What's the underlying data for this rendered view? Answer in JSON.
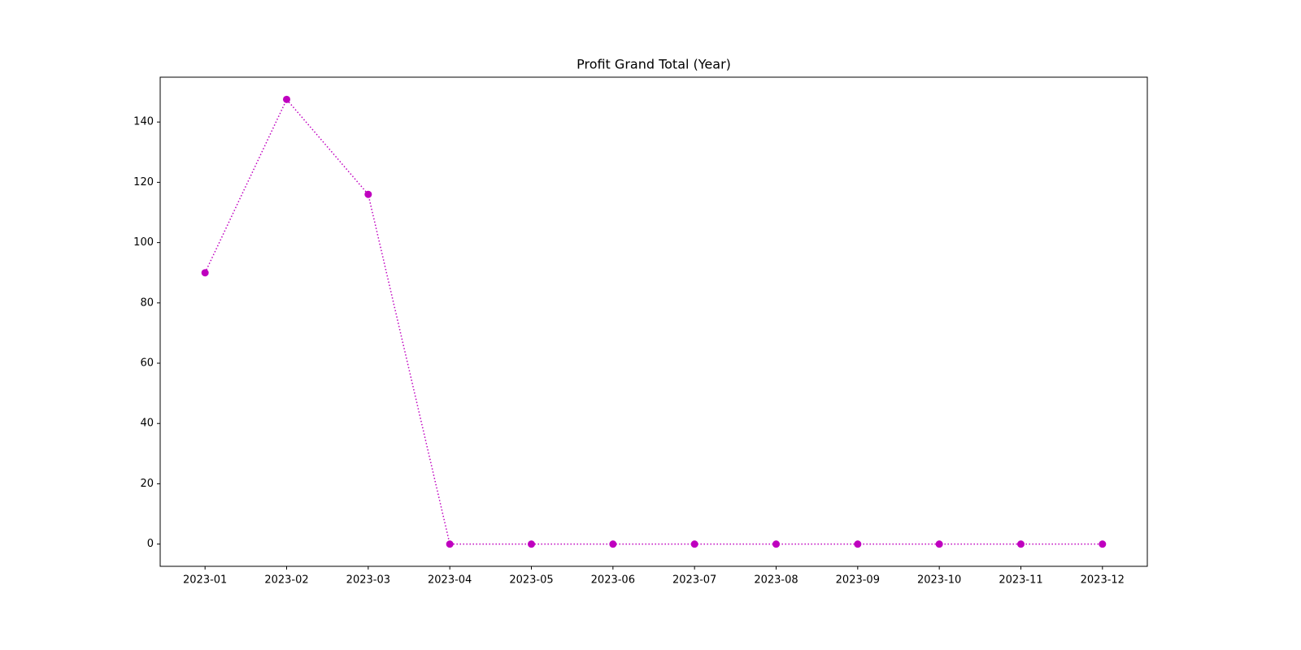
{
  "chart_data": {
    "type": "line",
    "title": "Profit Grand Total (Year)",
    "categories": [
      "2023-01",
      "2023-02",
      "2023-03",
      "2023-04",
      "2023-05",
      "2023-06",
      "2023-07",
      "2023-08",
      "2023-09",
      "2023-10",
      "2023-11",
      "2023-12"
    ],
    "values": [
      90,
      147.5,
      116,
      0,
      0,
      0,
      0,
      0,
      0,
      0,
      0,
      0
    ],
    "color": "#bf00bf",
    "line_style": "dotted",
    "marker": "circle",
    "ylim": [
      -7.375,
      154.875
    ],
    "yticks": [
      0,
      20,
      40,
      60,
      80,
      100,
      120,
      140
    ],
    "grid": false
  }
}
